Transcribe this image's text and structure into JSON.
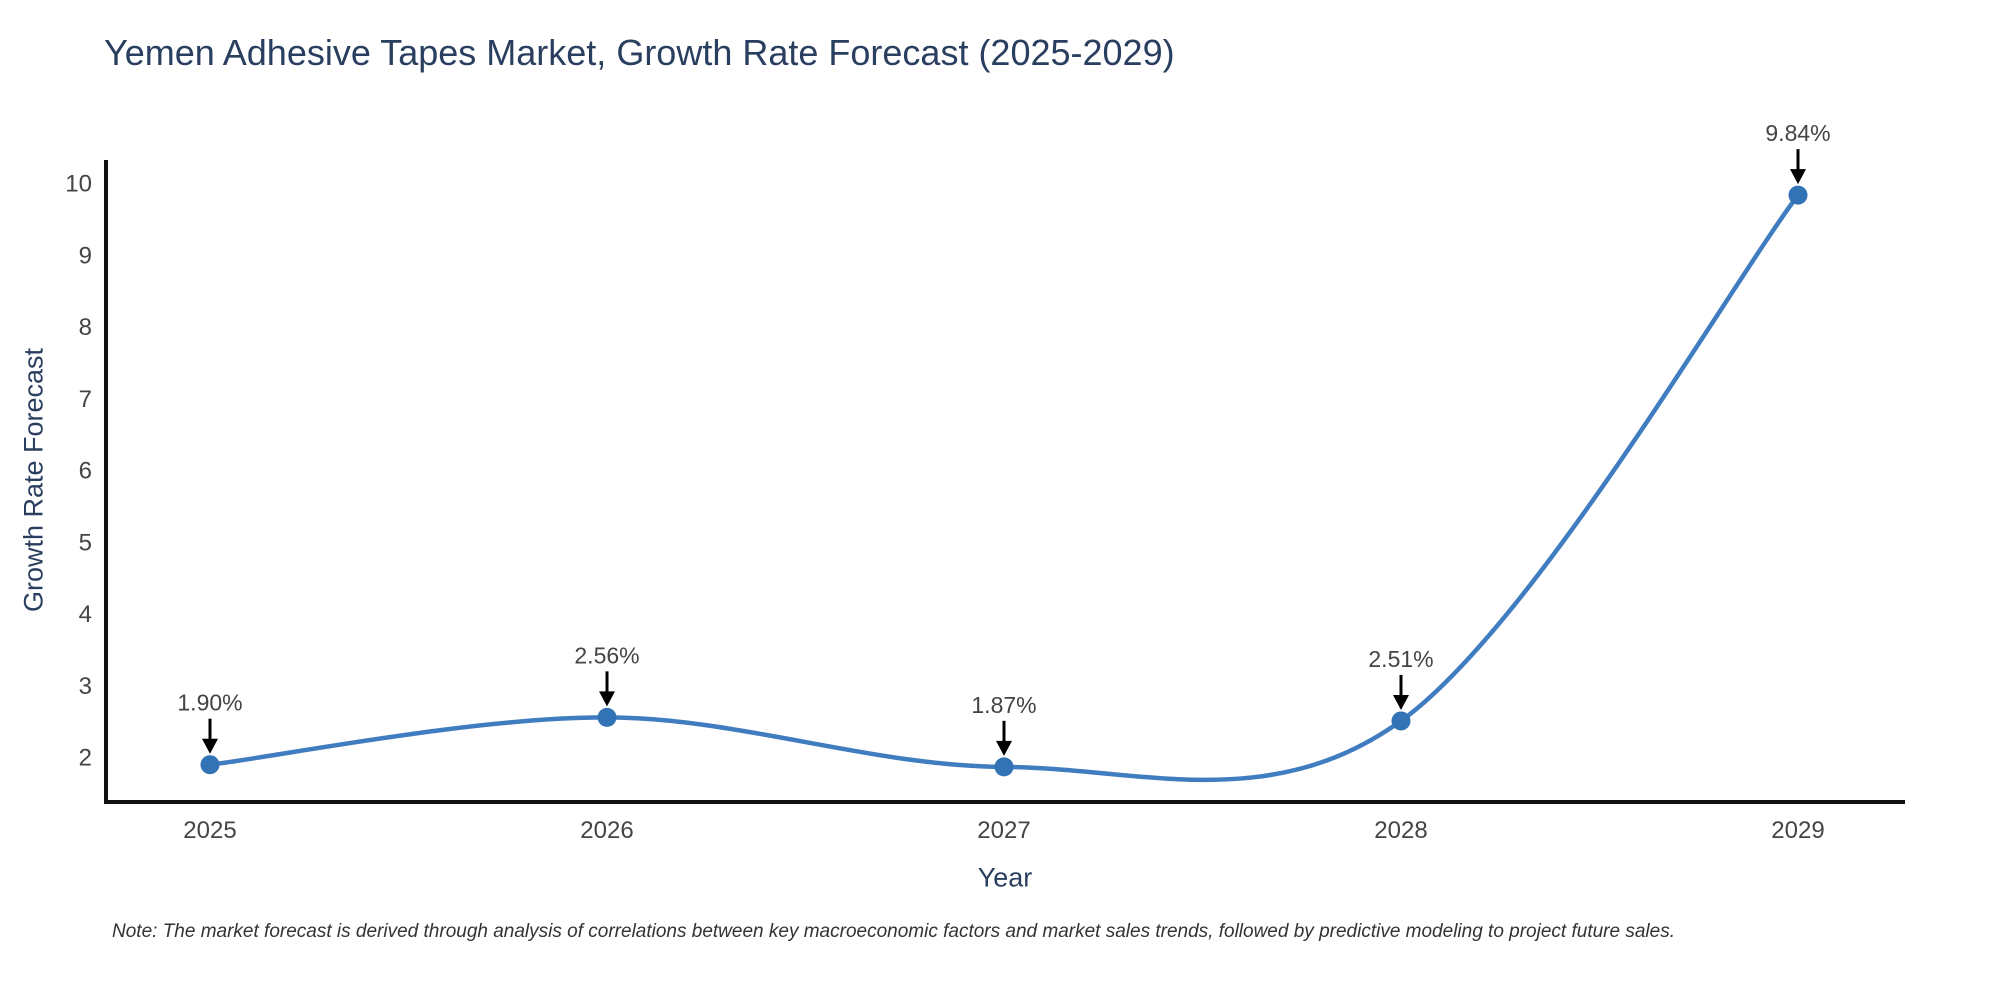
{
  "title": "Yemen Adhesive Tapes Market, Growth Rate Forecast (2025-2029)",
  "note": "Note: The market forecast is derived through analysis of correlations between key macroeconomic factors and market sales trends, followed by predictive modeling to project future sales.",
  "chart_data": {
    "type": "line",
    "title": "Yemen Adhesive Tapes Market, Growth Rate Forecast (2025-2029)",
    "xlabel": "Year",
    "ylabel": "Growth Rate Forecast",
    "categories": [
      "2025",
      "2026",
      "2027",
      "2028",
      "2029"
    ],
    "series": [
      {
        "name": "Growth Rate Forecast",
        "values": [
          1.9,
          2.56,
          1.87,
          2.51,
          9.84
        ]
      }
    ],
    "point_labels": [
      "1.90%",
      "2.56%",
      "1.87%",
      "2.51%",
      "9.84%"
    ],
    "yticks": [
      2,
      3,
      4,
      5,
      6,
      7,
      8,
      9,
      10
    ],
    "ylim": [
      1.38,
      10.33
    ],
    "grid": false,
    "legend_position": "none",
    "line_shape": "spline",
    "colors": {
      "line": "#3f7dc0",
      "marker": "#3173b4",
      "axis_line": "#111111",
      "tick_label": "#444444",
      "annotation_text": "#444444",
      "annotation_arrow": "#000000",
      "title": "#2a3f5f",
      "note": "#333333",
      "background": "#ffffff"
    }
  }
}
